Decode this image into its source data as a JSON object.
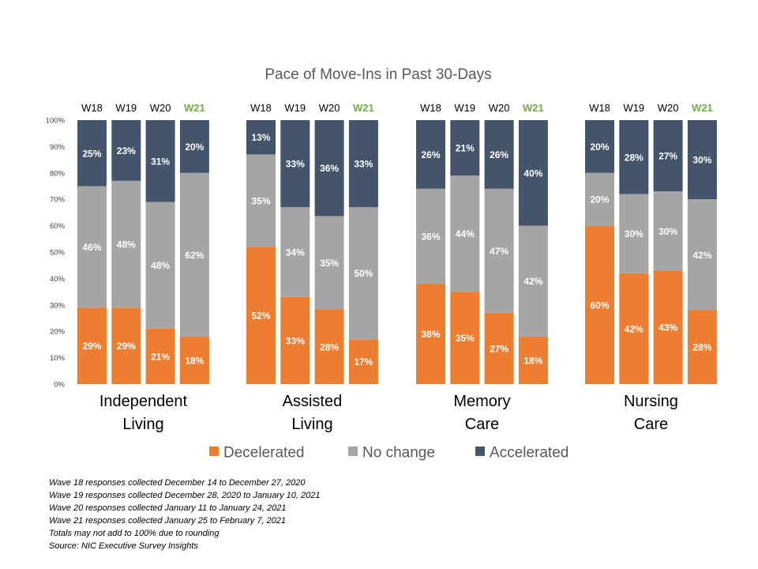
{
  "chart_data": {
    "type": "bar",
    "stacked": true,
    "percent": true,
    "title": "Pace of Move-Ins in Past 30-Days",
    "ylim": [
      0,
      100
    ],
    "yticks": [
      "0%",
      "10%",
      "20%",
      "30%",
      "40%",
      "50%",
      "60%",
      "70%",
      "80%",
      "90%",
      "100%"
    ],
    "grid": false,
    "legend_position": "bottom",
    "series": [
      {
        "name": "Decelerated",
        "color": "#ED7D31"
      },
      {
        "name": "No change",
        "color": "#A5A5A5"
      },
      {
        "name": "Accelerated",
        "color": "#44546A"
      }
    ],
    "highlight_wave": "W21",
    "highlight_color": "#70AD47",
    "groups": [
      {
        "label_lines": [
          "Independent",
          "Living"
        ],
        "bars": [
          {
            "wave": "W18",
            "values": [
              29,
              46,
              25
            ]
          },
          {
            "wave": "W19",
            "values": [
              29,
              48,
              23
            ]
          },
          {
            "wave": "W20",
            "values": [
              21,
              48,
              31
            ]
          },
          {
            "wave": "W21",
            "values": [
              18,
              62,
              20
            ]
          }
        ]
      },
      {
        "label_lines": [
          "Assisted",
          "Living"
        ],
        "bars": [
          {
            "wave": "W18",
            "values": [
              52,
              35,
              13
            ]
          },
          {
            "wave": "W19",
            "values": [
              33,
              34,
              33
            ]
          },
          {
            "wave": "W20",
            "values": [
              28,
              35,
              36
            ]
          },
          {
            "wave": "W21",
            "values": [
              17,
              50,
              33
            ]
          }
        ]
      },
      {
        "label_lines": [
          "Memory",
          "Care"
        ],
        "bars": [
          {
            "wave": "W18",
            "values": [
              38,
              36,
              26
            ]
          },
          {
            "wave": "W19",
            "values": [
              35,
              44,
              21
            ]
          },
          {
            "wave": "W20",
            "values": [
              27,
              47,
              26
            ]
          },
          {
            "wave": "W21",
            "values": [
              18,
              42,
              40
            ]
          }
        ]
      },
      {
        "label_lines": [
          "Nursing",
          "Care"
        ],
        "bars": [
          {
            "wave": "W18",
            "values": [
              60,
              20,
              20
            ]
          },
          {
            "wave": "W19",
            "values": [
              42,
              30,
              28
            ]
          },
          {
            "wave": "W20",
            "values": [
              43,
              30,
              27
            ]
          },
          {
            "wave": "W21",
            "values": [
              28,
              42,
              30
            ]
          }
        ]
      }
    ]
  },
  "notes": [
    "Wave 18 responses collected  December 14 to December  27, 2020",
    "Wave 19 responses collected  December 28, 2020 to January 10, 2021",
    "Wave 20 responses collected  January 11 to January 24, 2021",
    "Wave 21 responses collected January 25 to February 7, 2021",
    "Totals may not add to 100% due to rounding",
    "Source: NIC Executive Survey Insights"
  ]
}
